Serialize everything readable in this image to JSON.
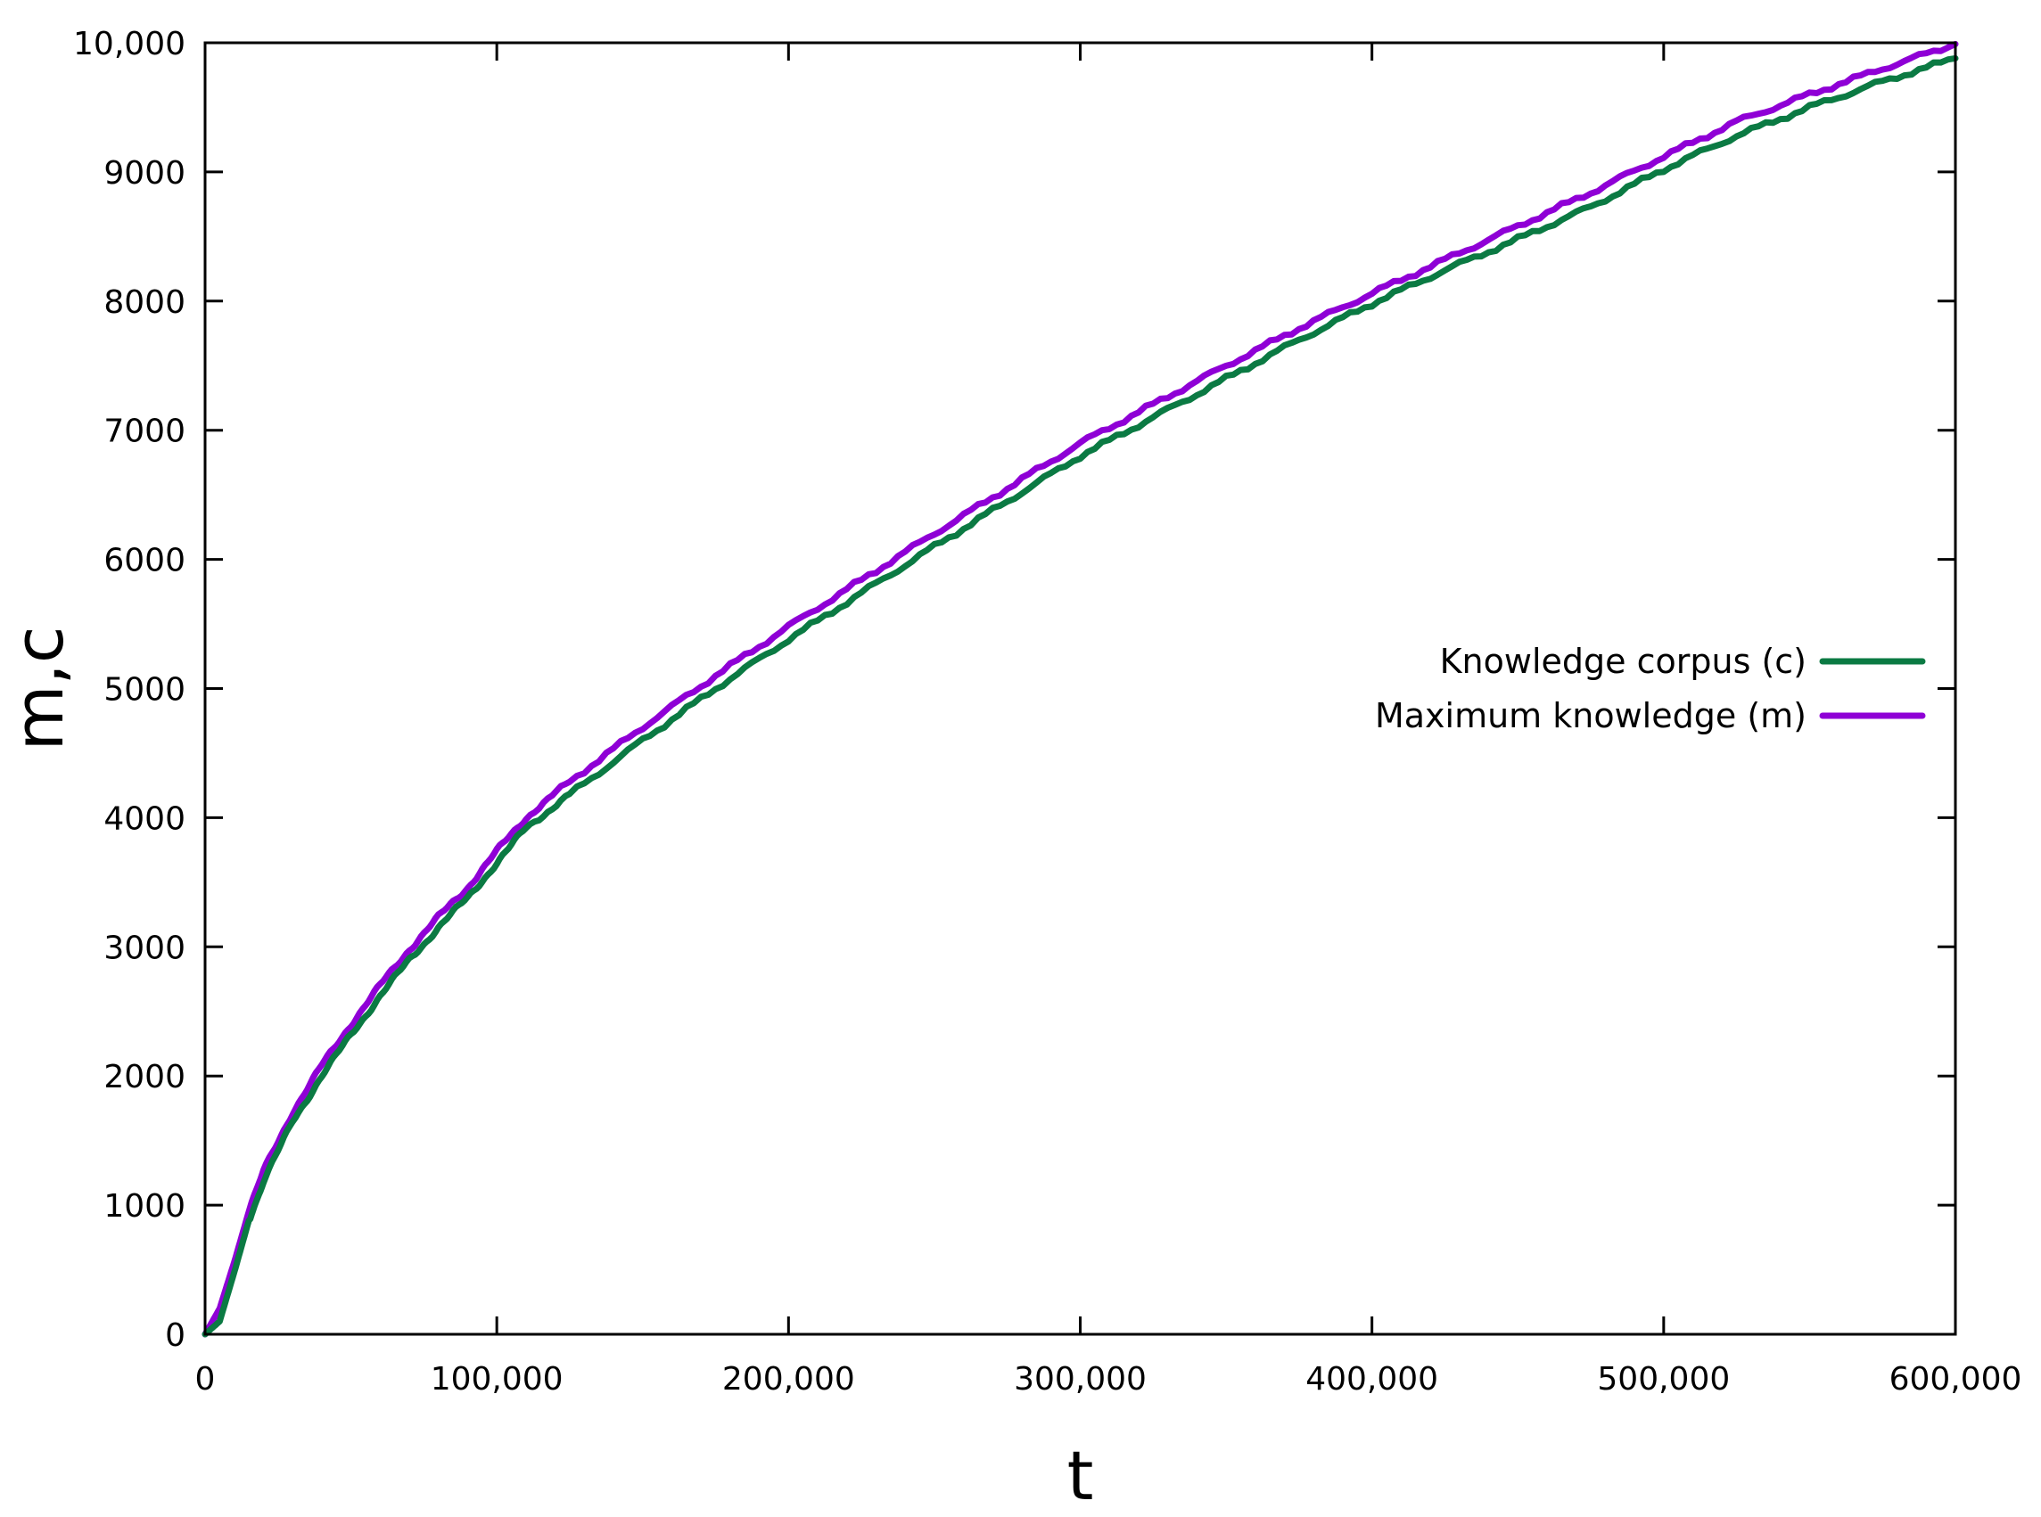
{
  "chart_data": {
    "type": "line",
    "xlabel": "t",
    "ylabel": "m,c",
    "xlim": [
      0,
      600000
    ],
    "ylim": [
      0,
      10000
    ],
    "x_ticks": [
      0,
      100000,
      200000,
      300000,
      400000,
      500000,
      600000
    ],
    "x_tick_labels": [
      "0",
      "100,000",
      "200,000",
      "300,000",
      "400,000",
      "500,000",
      "600,000"
    ],
    "y_ticks": [
      0,
      1000,
      2000,
      3000,
      4000,
      5000,
      6000,
      7000,
      8000,
      9000,
      10000
    ],
    "y_tick_labels": [
      "0",
      "1000",
      "2000",
      "3000",
      "4000",
      "5000",
      "6000",
      "7000",
      "8000",
      "9000",
      "10,000"
    ],
    "grid": false,
    "legend_position": "right",
    "series": [
      {
        "name": "Knowledge corpus (c)",
        "color": "#0b7a43",
        "x": [
          0,
          5000,
          10000,
          15000,
          20000,
          30000,
          40000,
          50000,
          60000,
          70000,
          80000,
          90000,
          100000,
          110000,
          125000,
          150000,
          175000,
          200000,
          225000,
          250000,
          275000,
          300000,
          325000,
          350000,
          375000,
          400000,
          425000,
          450000,
          475000,
          500000,
          525000,
          550000,
          575000,
          600000
        ],
        "values": [
          0,
          100,
          480,
          880,
          1180,
          1650,
          2000,
          2320,
          2620,
          2900,
          3150,
          3380,
          3650,
          3920,
          4180,
          4600,
          5000,
          5380,
          5740,
          6100,
          6450,
          6800,
          7100,
          7400,
          7700,
          7980,
          8240,
          8480,
          8730,
          9020,
          9280,
          9500,
          9700,
          9880
        ]
      },
      {
        "name": "Maximum knowledge (m)",
        "color": "#8f00d6",
        "x": [
          0,
          5000,
          10000,
          15000,
          20000,
          30000,
          40000,
          50000,
          60000,
          70000,
          80000,
          90000,
          100000,
          110000,
          125000,
          150000,
          175000,
          200000,
          225000,
          250000,
          275000,
          300000,
          325000,
          350000,
          375000,
          400000,
          425000,
          450000,
          475000,
          500000,
          525000,
          550000,
          575000,
          600000
        ],
        "values": [
          0,
          200,
          560,
          950,
          1260,
          1720,
          2080,
          2400,
          2700,
          2980,
          3230,
          3460,
          3740,
          4000,
          4280,
          4700,
          5100,
          5480,
          5840,
          6200,
          6550,
          6900,
          7200,
          7500,
          7790,
          8060,
          8320,
          8580,
          8840,
          9120,
          9390,
          9600,
          9800,
          9990
        ]
      }
    ]
  }
}
